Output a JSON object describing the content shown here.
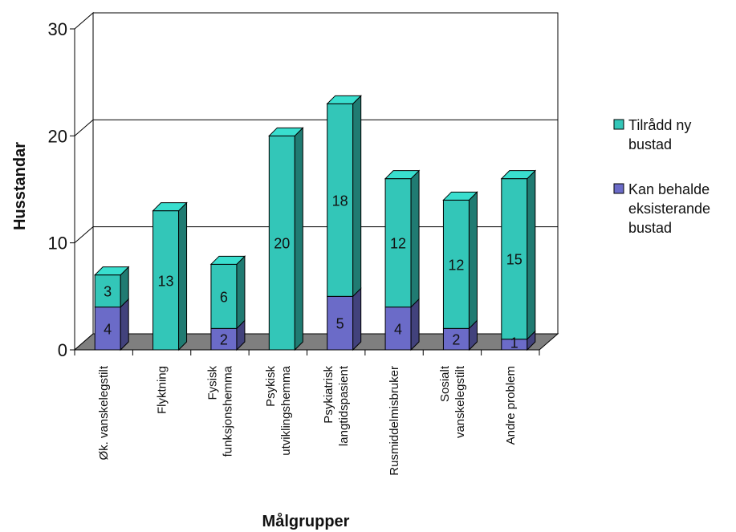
{
  "chart_data": {
    "type": "bar",
    "stacked": true,
    "three_d": true,
    "categories": [
      [
        "Øk. vanskelegstilt"
      ],
      [
        "Flyktning"
      ],
      [
        "Fysisk",
        "funksjonshemma"
      ],
      [
        "Psykisk",
        "utviklingshemma"
      ],
      [
        "Psykiatrisk",
        "langtidspasient"
      ],
      [
        "Rusmiddelmisbruker"
      ],
      [
        "Sosialt",
        "vanskelegstilt"
      ],
      [
        "Andre problem"
      ]
    ],
    "series": [
      {
        "name": "Kan behalde eksisterande bustad",
        "legend_lines": [
          "Kan behalde",
          "eksisterande",
          "bustad"
        ],
        "color": "#6b6bc8",
        "values": [
          4,
          0,
          2,
          0,
          5,
          4,
          2,
          1
        ],
        "labels": [
          "4",
          "",
          "2",
          "",
          "5",
          "4",
          "2",
          "1"
        ]
      },
      {
        "name": "Tilrådd ny bustad",
        "legend_lines": [
          "Tilrådd ny",
          "bustad"
        ],
        "color": "#33c6b8",
        "values": [
          3,
          13,
          6,
          20,
          18,
          12,
          12,
          15
        ],
        "labels": [
          "3",
          "13",
          "6",
          "20",
          "18",
          "12",
          "12",
          "15"
        ]
      }
    ],
    "xlabel": "Målgrupper",
    "ylabel": "Husstandar",
    "ylim": [
      0,
      30
    ],
    "yticks": [
      0,
      10,
      20,
      30
    ],
    "grid": true,
    "legend": "right"
  }
}
